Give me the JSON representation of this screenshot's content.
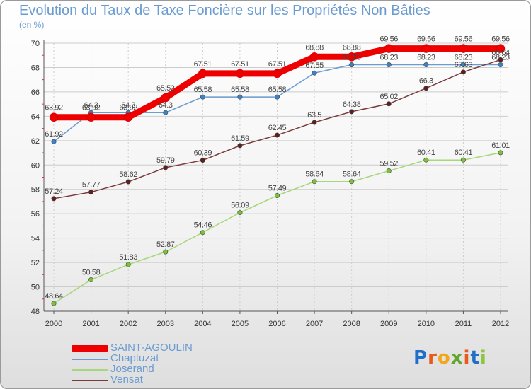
{
  "header": {
    "title": "Evolution du Taux de Taxe Foncière sur les Propriétés Non Bâties",
    "unit": "(en %)"
  },
  "brand": {
    "letters": [
      "P",
      "r",
      "o",
      "x",
      "i",
      "t",
      "i"
    ],
    "colors": [
      "#1f6fc9",
      "#e8591a",
      "#f2a71b",
      "#62a72c",
      "#e8591a",
      "#1f6fc9",
      "#8cc63f"
    ]
  },
  "chart_data": {
    "type": "line",
    "title": "Evolution du Taux de Taxe Foncière sur les Propriétés Non Bâties",
    "ylabel": "(en %)",
    "xlabel": "",
    "ylim": [
      48,
      70
    ],
    "yticks": [
      48,
      50,
      52,
      54,
      56,
      58,
      60,
      62,
      64,
      66,
      68,
      70
    ],
    "x": [
      "2000",
      "2001",
      "2002",
      "2003",
      "2004",
      "2005",
      "2006",
      "2007",
      "2008",
      "2009",
      "2010",
      "2011",
      "2012"
    ],
    "grid": true,
    "legend_position": "bottom-left",
    "series": [
      {
        "name": "Chaptuzat",
        "color": "#6a9bd1",
        "marker": "#3a83c8",
        "values": [
          61.92,
          64.3,
          64.3,
          64.3,
          65.58,
          65.58,
          65.58,
          67.55,
          68.23,
          68.23,
          68.23,
          68.23,
          68.23
        ],
        "labels": [
          "61.92",
          "64.3",
          "64.3",
          "64.3",
          "65.58",
          "65.58",
          "65.58",
          "67.55",
          "68.23",
          "68.23",
          "68.23",
          "68.23",
          "68.23"
        ]
      },
      {
        "name": "Joserand",
        "color": "#a8d67a",
        "marker": "#78c33a",
        "values": [
          48.64,
          50.58,
          51.83,
          52.87,
          54.46,
          56.09,
          57.49,
          58.64,
          58.64,
          59.52,
          60.41,
          60.41,
          61.01
        ],
        "labels": [
          "48.64",
          "50.58",
          "51.83",
          "52.87",
          "54.46",
          "56.09",
          "57.49",
          "58.64",
          "58.64",
          "59.52",
          "60.41",
          "60.41",
          "61.01"
        ]
      },
      {
        "name": "Vensat",
        "color": "#7a3a3a",
        "marker": "#5e1f1f",
        "values": [
          57.24,
          57.77,
          58.62,
          59.79,
          60.39,
          61.59,
          62.45,
          63.5,
          64.38,
          65.02,
          66.3,
          67.63,
          68.64
        ],
        "labels": [
          "57.24",
          "57.77",
          "58.62",
          "59.79",
          "60.39",
          "61.59",
          "62.45",
          "63.5",
          "64.38",
          "65.02",
          "66.3",
          "67.63",
          "68.64"
        ]
      },
      {
        "name": "SAINT-AGOULIN",
        "color": "#ee0000",
        "marker": "#ee0000",
        "values": [
          63.92,
          63.92,
          63.92,
          65.52,
          67.51,
          67.51,
          67.51,
          68.88,
          68.88,
          69.56,
          69.56,
          69.56,
          69.56
        ],
        "labels": [
          "63.92",
          "63.92",
          "63.92",
          "65.52",
          "67.51",
          "67.51",
          "67.51",
          "68.88",
          "68.88",
          "69.56",
          "69.56",
          "69.56",
          "69.56"
        ]
      }
    ],
    "legend_order": [
      "SAINT-AGOULIN",
      "Chaptuzat",
      "Joserand",
      "Vensat"
    ]
  }
}
